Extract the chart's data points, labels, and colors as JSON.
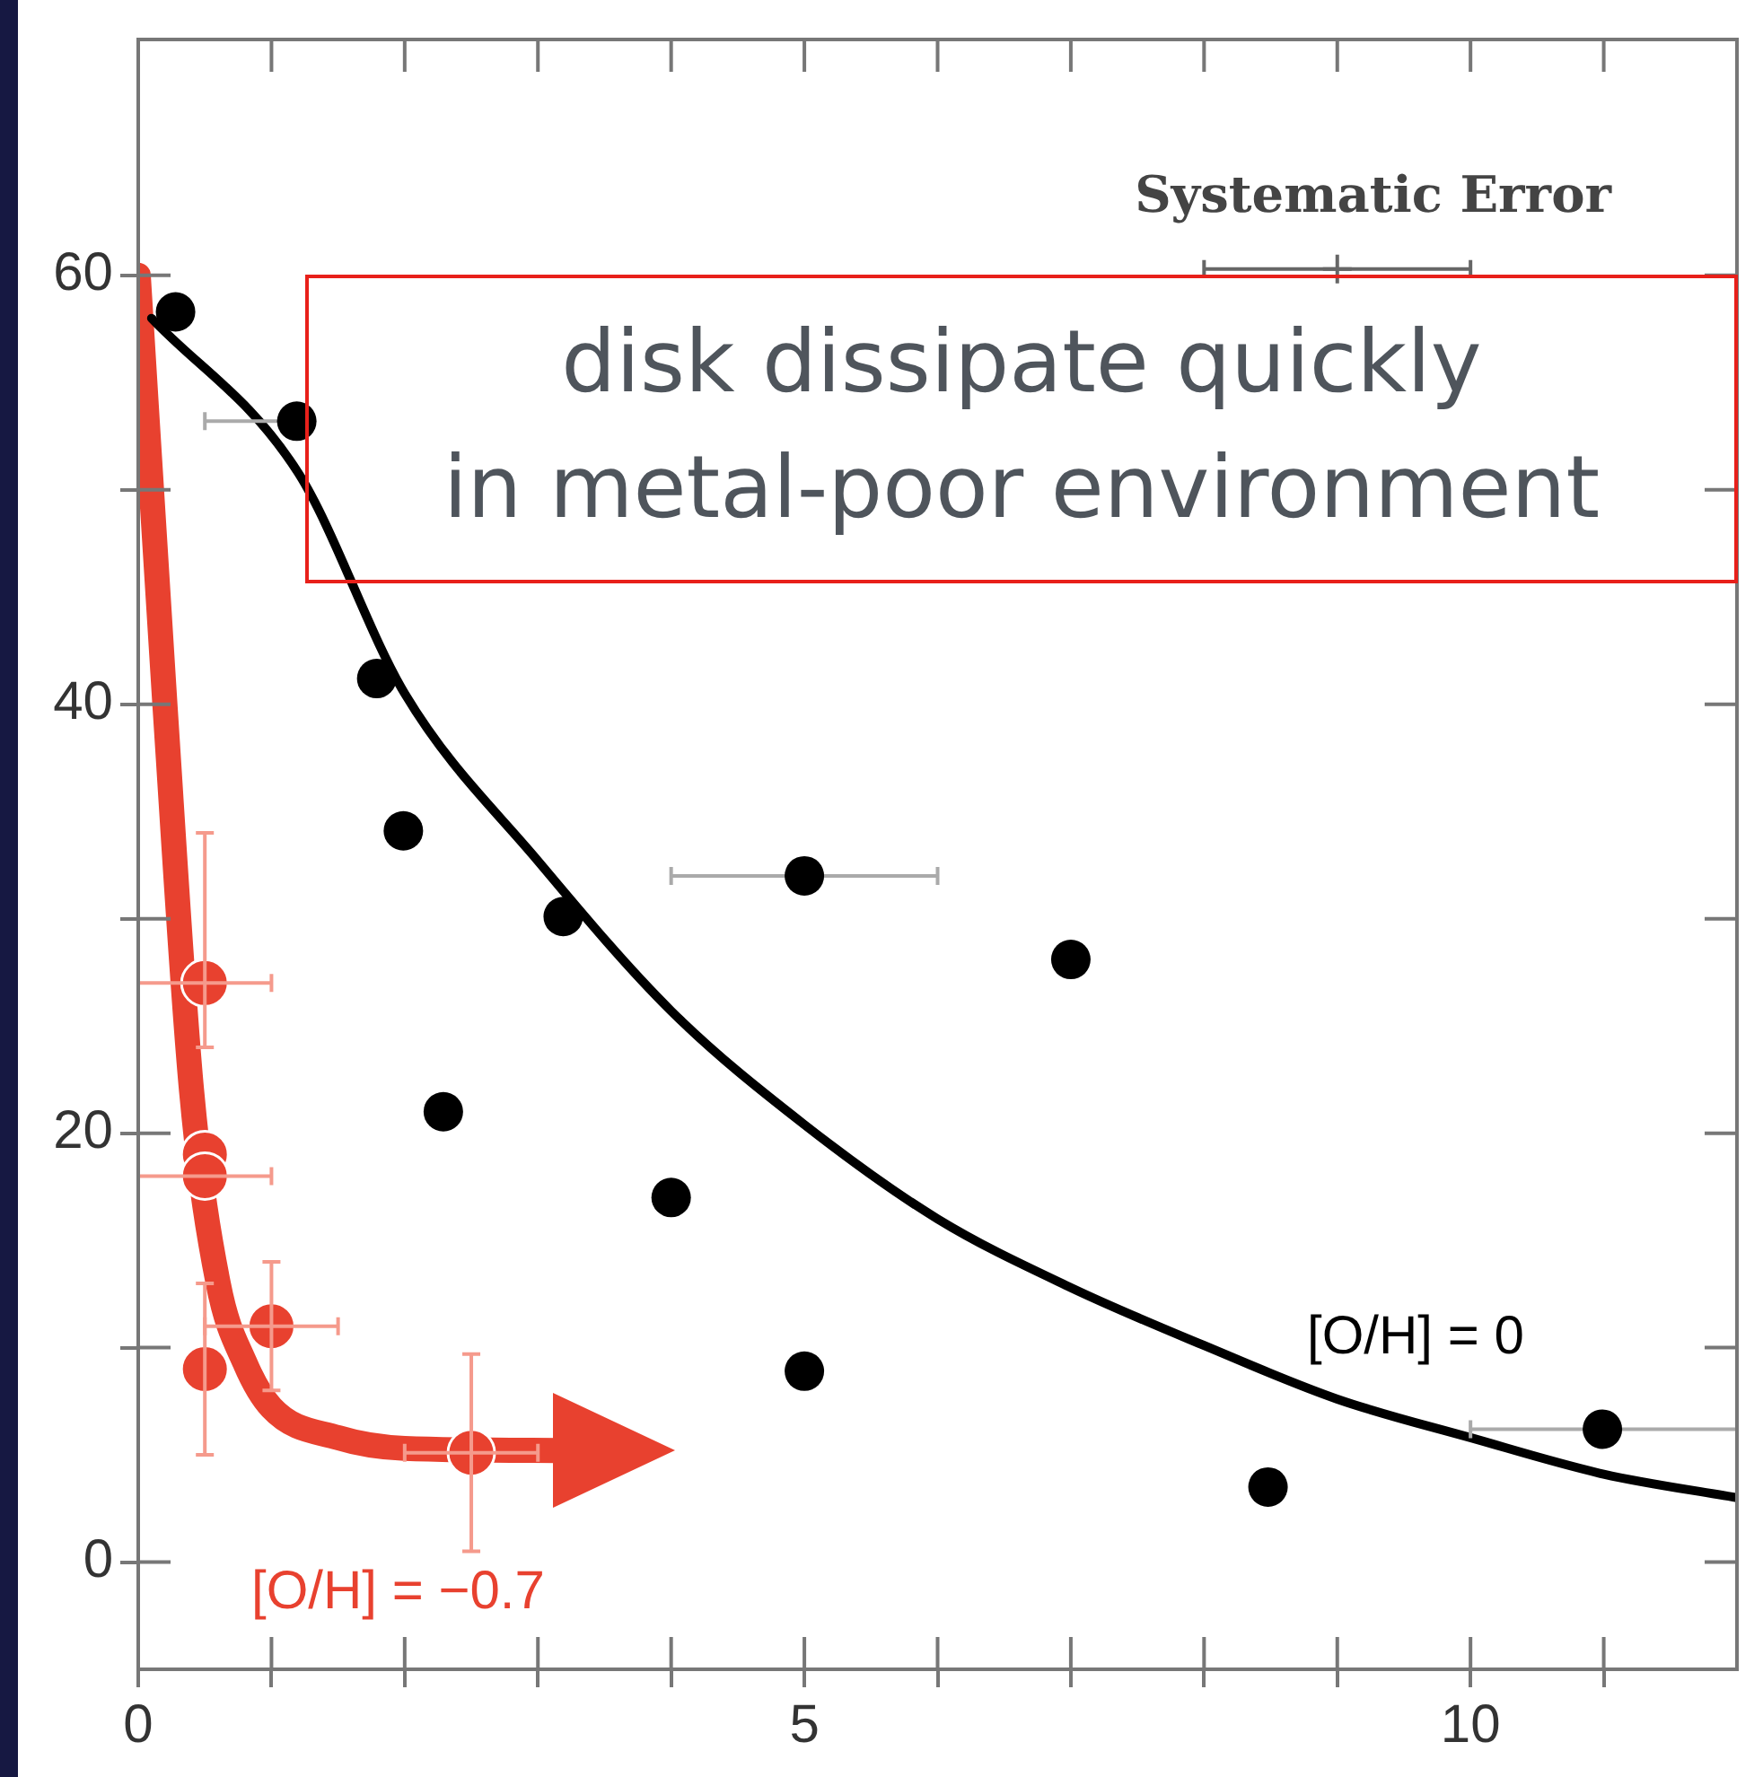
{
  "chart_data": {
    "type": "scatter",
    "xlim": [
      0,
      12
    ],
    "ylim": [
      -5,
      71
    ],
    "xticks": [
      0,
      {
        "value": 1,
        "label": null
      },
      {
        "value": 2,
        "label": null
      },
      {
        "value": 3,
        "label": null
      },
      {
        "value": 4,
        "label": null
      },
      5,
      {
        "value": 6,
        "label": null
      },
      {
        "value": 7,
        "label": null
      },
      {
        "value": 8,
        "label": null
      },
      {
        "value": 9,
        "label": null
      },
      10,
      {
        "value": 11,
        "label": null
      }
    ],
    "yticks": [
      0,
      {
        "value": 10,
        "label": null
      },
      20,
      {
        "value": 30,
        "label": null
      },
      40,
      {
        "value": 50,
        "label": null
      },
      60
    ],
    "grid": false,
    "legend": false,
    "series": [
      {
        "type": "line",
        "color": "#000000",
        "marker": "none",
        "x": [
          0.1,
          1.2,
          2,
          3,
          4,
          5,
          6,
          7,
          8,
          9,
          10,
          11,
          12
        ],
        "values": [
          58,
          50.8,
          40.5,
          32.7,
          25.7,
          20.4,
          16,
          12.8,
          10.1,
          7.6,
          5.8,
          4.1,
          3.0
        ]
      },
      {
        "type": "line",
        "color": "#e8412f",
        "marker": "none",
        "x": [
          0,
          0.2,
          0.4,
          0.6,
          0.8,
          1,
          1.5,
          2,
          3.2
        ],
        "values": [
          60,
          40,
          22,
          13,
          9.3,
          7.2,
          5.8,
          5.3,
          5.2
        ]
      },
      {
        "type": "scatter",
        "color": "#000000",
        "marker": "circle",
        "x": [
          0.28,
          1.19,
          1.79,
          1.99,
          3.19,
          2.29,
          4.0,
          5.0,
          7.0,
          5.0,
          8.48,
          10.99
        ],
        "values": [
          58.3,
          53.2,
          41.2,
          34.1,
          30.1,
          21.0,
          17.0,
          32.0,
          28.1,
          8.9,
          3.5,
          6.2
        ],
        "xerrors": [
          null,
          [
            0.5,
            1.19
          ],
          null,
          null,
          null,
          null,
          null,
          [
            4,
            6
          ],
          null,
          null,
          null,
          [
            10,
            12
          ]
        ]
      },
      {
        "type": "scatter",
        "color": "#e8412f",
        "marker": "circle",
        "x": [
          0.5,
          0.5,
          0.5,
          0.5,
          1.0,
          2.5
        ],
        "values": [
          27,
          19,
          18,
          9,
          11,
          5.1
        ],
        "xerrors": [
          [
            0,
            1
          ],
          null,
          [
            0,
            1
          ],
          null,
          [
            0.5,
            1.5
          ],
          [
            2,
            3
          ]
        ],
        "errors": [
          [
            24,
            34
          ],
          null,
          null,
          [
            5,
            13
          ],
          [
            8,
            14
          ],
          [
            0.5,
            9.7
          ]
        ]
      },
      {
        "type": "scatter",
        "color": "#666666",
        "marker": "cross",
        "x": [
          9
        ],
        "values": [
          60.3
        ],
        "xerrors": [
          1
        ]
      }
    ],
    "annotations": [
      "Systematic Error",
      "[O/H] = 0",
      "[O/H] = −0.7",
      "disk dissipate quickly\nin metal-poor environment"
    ]
  }
}
